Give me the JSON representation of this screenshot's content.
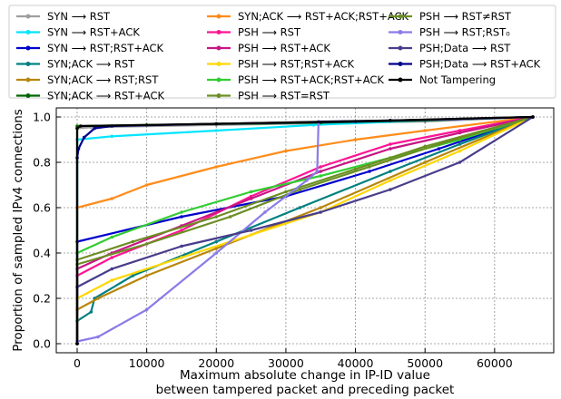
{
  "chart_data": {
    "type": "line",
    "xlabel": "Maximum absolute change in IP-ID value",
    "xlabel_line2": "between tampered packet and preceding packet",
    "ylabel": "Proportion of sampled IPv4 connections",
    "xlim": [
      -3000,
      68500
    ],
    "ylim": [
      -0.04,
      1.04
    ],
    "x_ticks": [
      0,
      10000,
      20000,
      30000,
      40000,
      50000,
      60000
    ],
    "x_tick_labels": [
      "0",
      "10000",
      "20000",
      "30000",
      "40000",
      "50000",
      "60000"
    ],
    "y_ticks": [
      0.0,
      0.2,
      0.4,
      0.6,
      0.8,
      1.0
    ],
    "y_tick_labels": [
      "0.0",
      "0.2",
      "0.4",
      "0.6",
      "0.8",
      "1.0"
    ],
    "grid": true,
    "legend_position": "top",
    "series": [
      {
        "name": "SYN ⟶ RST",
        "color": "#9e9e9e",
        "points": [
          [
            0,
            0
          ],
          [
            0,
            0.95
          ],
          [
            2000,
            0.955
          ],
          [
            20000,
            0.965
          ],
          [
            50000,
            0.98
          ],
          [
            65500,
            1.0
          ]
        ]
      },
      {
        "name": "SYN ⟶ RST+ACK",
        "color": "#00e5ff",
        "points": [
          [
            0,
            0
          ],
          [
            0,
            0.9
          ],
          [
            5000,
            0.915
          ],
          [
            20000,
            0.94
          ],
          [
            34000,
            0.965
          ],
          [
            50000,
            0.985
          ],
          [
            65500,
            1.0
          ]
        ]
      },
      {
        "name": "SYN ⟶ RST;RST+ACK",
        "color": "#0000cd",
        "points": [
          [
            0,
            0
          ],
          [
            0,
            0.45
          ],
          [
            15000,
            0.56
          ],
          [
            30000,
            0.65
          ],
          [
            42000,
            0.76
          ],
          [
            52000,
            0.86
          ],
          [
            65500,
            1.0
          ]
        ]
      },
      {
        "name": "SYN;ACK ⟶ RST",
        "color": "#008080",
        "points": [
          [
            0,
            0
          ],
          [
            0,
            0.1
          ],
          [
            2000,
            0.14
          ],
          [
            2500,
            0.2
          ],
          [
            8000,
            0.3
          ],
          [
            20000,
            0.45
          ],
          [
            32000,
            0.6
          ],
          [
            45000,
            0.76
          ],
          [
            55000,
            0.88
          ],
          [
            65500,
            1.0
          ]
        ]
      },
      {
        "name": "SYN;ACK ⟶ RST;RST",
        "color": "#b8860b",
        "points": [
          [
            0,
            0
          ],
          [
            0,
            0.15
          ],
          [
            3000,
            0.2
          ],
          [
            10000,
            0.3
          ],
          [
            20000,
            0.42
          ],
          [
            35000,
            0.6
          ],
          [
            50000,
            0.8
          ],
          [
            65500,
            1.0
          ]
        ]
      },
      {
        "name": "SYN;ACK ⟶ RST+ACK",
        "color": "#006400",
        "points": [
          [
            0,
            0
          ],
          [
            0,
            0.96
          ],
          [
            10000,
            0.965
          ],
          [
            35000,
            0.975
          ],
          [
            50000,
            0.985
          ],
          [
            65500,
            1.0
          ]
        ]
      },
      {
        "name": "SYN;ACK ⟶ RST+ACK;RST+ACK",
        "color": "#ff8c1a",
        "points": [
          [
            0,
            0
          ],
          [
            0,
            0.6
          ],
          [
            5000,
            0.64
          ],
          [
            10000,
            0.7
          ],
          [
            20000,
            0.78
          ],
          [
            30000,
            0.85
          ],
          [
            40000,
            0.9
          ],
          [
            50000,
            0.94
          ],
          [
            65500,
            1.0
          ]
        ]
      },
      {
        "name": "PSH ⟶ RST",
        "color": "#ff1493",
        "points": [
          [
            0,
            0
          ],
          [
            0,
            0.3
          ],
          [
            5000,
            0.38
          ],
          [
            15000,
            0.5
          ],
          [
            25000,
            0.65
          ],
          [
            35000,
            0.78
          ],
          [
            45000,
            0.88
          ],
          [
            55000,
            0.94
          ],
          [
            65500,
            1.0
          ]
        ]
      },
      {
        "name": "PSH ⟶ RST+ACK",
        "color": "#c71585",
        "points": [
          [
            0,
            0
          ],
          [
            0,
            0.33
          ],
          [
            5000,
            0.4
          ],
          [
            15000,
            0.52
          ],
          [
            25000,
            0.64
          ],
          [
            35000,
            0.76
          ],
          [
            45000,
            0.86
          ],
          [
            55000,
            0.93
          ],
          [
            65500,
            1.0
          ]
        ]
      },
      {
        "name": "PSH ⟶ RST;RST+ACK",
        "color": "#ffd700",
        "points": [
          [
            0,
            0
          ],
          [
            0,
            0.2
          ],
          [
            5000,
            0.28
          ],
          [
            15000,
            0.38
          ],
          [
            25000,
            0.48
          ],
          [
            35000,
            0.58
          ],
          [
            45000,
            0.72
          ],
          [
            55000,
            0.85
          ],
          [
            65500,
            1.0
          ]
        ]
      },
      {
        "name": "PSH ⟶ RST+ACK;RST+ACK",
        "color": "#32cd32",
        "points": [
          [
            0,
            0
          ],
          [
            0,
            0.4
          ],
          [
            5000,
            0.47
          ],
          [
            15000,
            0.58
          ],
          [
            25000,
            0.67
          ],
          [
            35000,
            0.74
          ],
          [
            45000,
            0.82
          ],
          [
            55000,
            0.9
          ],
          [
            65500,
            1.0
          ]
        ]
      },
      {
        "name": "PSH ⟶ RST=RST",
        "color": "#6b8e23",
        "points": [
          [
            0,
            0
          ],
          [
            0,
            0.37
          ],
          [
            8000,
            0.45
          ],
          [
            20000,
            0.56
          ],
          [
            30000,
            0.67
          ],
          [
            40000,
            0.77
          ],
          [
            50000,
            0.87
          ],
          [
            65500,
            1.0
          ]
        ]
      },
      {
        "name": "PSH ⟶ RST≠RST",
        "color": "#6b8e23",
        "points": [
          [
            0,
            0
          ],
          [
            0,
            0.35
          ],
          [
            10000,
            0.44
          ],
          [
            22000,
            0.56
          ],
          [
            32000,
            0.68
          ],
          [
            42000,
            0.78
          ],
          [
            52000,
            0.88
          ],
          [
            65500,
            1.0
          ]
        ]
      },
      {
        "name": "PSH ⟶ RST;RST₀",
        "color": "#8b7be8",
        "points": [
          [
            0,
            0
          ],
          [
            0,
            0.01
          ],
          [
            3000,
            0.03
          ],
          [
            10000,
            0.15
          ],
          [
            20000,
            0.4
          ],
          [
            27000,
            0.58
          ],
          [
            33000,
            0.72
          ],
          [
            34500,
            0.76
          ],
          [
            34700,
            0.98
          ],
          [
            45000,
            0.985
          ],
          [
            55000,
            0.99
          ],
          [
            65500,
            1.0
          ]
        ]
      },
      {
        "name": "PSH;Data ⟶ RST",
        "color": "#483d8b",
        "points": [
          [
            0,
            0
          ],
          [
            0,
            0.25
          ],
          [
            5000,
            0.33
          ],
          [
            15000,
            0.43
          ],
          [
            25000,
            0.5
          ],
          [
            35000,
            0.58
          ],
          [
            45000,
            0.68
          ],
          [
            55000,
            0.8
          ],
          [
            65500,
            1.0
          ]
        ]
      },
      {
        "name": "PSH;Data ⟶ RST+ACK",
        "color": "#00008b",
        "points": [
          [
            0,
            0
          ],
          [
            0,
            0.82
          ],
          [
            200,
            0.86
          ],
          [
            1000,
            0.91
          ],
          [
            2500,
            0.95
          ],
          [
            5000,
            0.96
          ],
          [
            20000,
            0.97
          ],
          [
            40000,
            0.98
          ],
          [
            65500,
            1.0
          ]
        ]
      },
      {
        "name": "Not Tampering",
        "color": "#000000",
        "points": [
          [
            0,
            0
          ],
          [
            0,
            0.95
          ],
          [
            500,
            0.96
          ],
          [
            20000,
            0.97
          ],
          [
            45000,
            0.985
          ],
          [
            65500,
            1.0
          ]
        ]
      }
    ]
  }
}
